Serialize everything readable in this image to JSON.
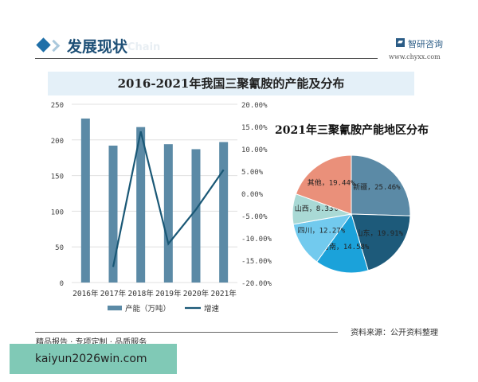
{
  "header": {
    "section_title": "发展现状",
    "ghost_text": "Chain",
    "logo_name": "智研咨询",
    "logo_url": "www.chyxx.com"
  },
  "banner_title": "2016-2021年我国三聚氰胺的产能及分布",
  "footer": {
    "slogan": "精品报告 · 专项定制 · 品质服务",
    "source": "资料来源：公开资料整理"
  },
  "watermark_box": "kaiyun2026win.com",
  "chart_data": [
    {
      "type": "bar+line",
      "categories": [
        "2016年",
        "2017年",
        "2018年",
        "2019年",
        "2020年",
        "2021年"
      ],
      "series": [
        {
          "name": "产能（万吨）",
          "type": "bar",
          "axis": "left",
          "values": [
            230,
            192,
            218,
            194,
            187,
            197
          ],
          "color": "#5b8aa6"
        },
        {
          "name": "增速",
          "type": "line",
          "axis": "right",
          "values": [
            null,
            -16.5,
            13.9,
            -11.3,
            -3.6,
            5.3
          ],
          "color": "#1a5876"
        }
      ],
      "left_ylim": [
        0,
        250
      ],
      "left_ticks": [
        "0",
        "50",
        "100",
        "150",
        "200",
        "250"
      ],
      "right_ylim": [
        -20,
        20
      ],
      "right_ticks": [
        "-20.00%",
        "-15.00%",
        "-10.00%",
        "-5.00%",
        "0.00%",
        "5.00%",
        "10.00%",
        "15.00%",
        "20.00%"
      ],
      "grid": true,
      "legend": "bottom"
    },
    {
      "type": "pie",
      "title": "2021年三聚氰胺产能地区分布",
      "slices": [
        {
          "label": "新疆",
          "value": 25.46,
          "text": "25.46%",
          "color": "#5b8aa6"
        },
        {
          "label": "山东",
          "value": 19.91,
          "text": "19.91%",
          "color": "#1d5a7a"
        },
        {
          "label": "河南",
          "value": 14.58,
          "text": "14.58%",
          "color": "#1ba2da"
        },
        {
          "label": "四川",
          "value": 12.27,
          "text": "12.27%",
          "color": "#72caee"
        },
        {
          "label": "山西",
          "value": 8.33,
          "text": "8.33%",
          "color": "#a9d9d5"
        },
        {
          "label": "其他",
          "value": 19.44,
          "text": "19.44%",
          "color": "#ea907a"
        }
      ]
    }
  ]
}
